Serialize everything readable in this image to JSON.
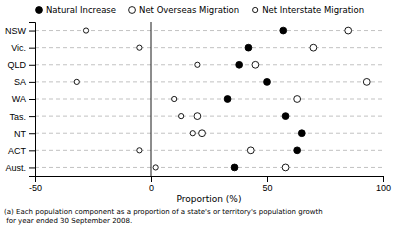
{
  "chart_data": {
    "type": "dot",
    "orientation": "horizontal",
    "categories": [
      "NSW",
      "Vic.",
      "QLD",
      "SA",
      "WA",
      "Tas.",
      "NT",
      "ACT",
      "Aust."
    ],
    "series": [
      {
        "name": "Natural Increase",
        "color": "#000000",
        "marker": "filled-circle",
        "values": [
          57,
          42,
          38,
          50,
          33,
          58,
          65,
          63,
          36
        ]
      },
      {
        "name": "Net Overseas Migration",
        "color": "#000000",
        "marker": "open-circle",
        "values": [
          85,
          70,
          45,
          93,
          63,
          20,
          22,
          43,
          58
        ]
      },
      {
        "name": "Net Interstate Migration",
        "color": "#000000",
        "marker": "small-open-circle",
        "values": [
          -28,
          -5,
          20,
          -32,
          10,
          13,
          18,
          -5,
          2
        ]
      }
    ],
    "xlabel": "Proportion (%)",
    "xlim": [
      -50,
      100
    ],
    "xticks": [
      -50,
      0,
      50,
      100
    ],
    "grid": true,
    "legend": "top",
    "annotations": [
      "(a) Each population component as a proportion of a state's or territory's population growth\n for year ended 30 September 2008."
    ]
  }
}
